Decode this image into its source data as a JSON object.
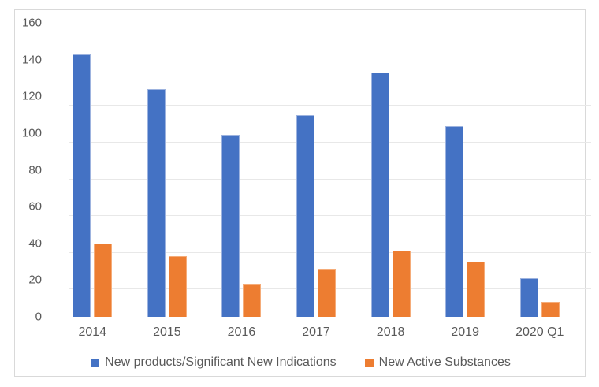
{
  "chart_data": {
    "type": "bar",
    "title": "",
    "xlabel": "",
    "ylabel": "",
    "categories": [
      "2014",
      "2015",
      "2016",
      "2017",
      "2018",
      "2019",
      "2020 Q1"
    ],
    "series": [
      {
        "name": "New products/Significant New Indications",
        "color": "#4472C4",
        "edge_color": "#9DB3DF",
        "values": [
          143,
          124,
          99,
          110,
          133,
          104,
          21
        ]
      },
      {
        "name": "New Active Substances",
        "color": "#ED7D31",
        "edge_color": "#F5AC79",
        "values": [
          40,
          33,
          18,
          26,
          36,
          30,
          8
        ]
      }
    ],
    "ylim": [
      0,
      160
    ],
    "ytick_step": 20,
    "ytick_labels": [
      "0",
      "20",
      "40",
      "60",
      "80",
      "100",
      "120",
      "140",
      "160"
    ],
    "grid": true,
    "legend_position": "bottom"
  },
  "colors": {
    "background": "#FFFFFF",
    "frame_border": "#D9D9D9",
    "gridline": "#E8E8E8",
    "axis_line": "#D6D6D6",
    "tick_text": "#595959"
  }
}
